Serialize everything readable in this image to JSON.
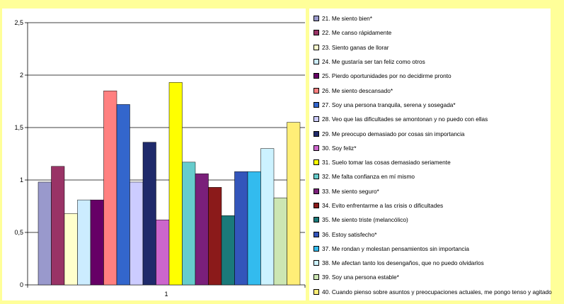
{
  "chart_data": {
    "type": "bar",
    "categories": [
      "1"
    ],
    "ylim": [
      0,
      2.5
    ],
    "yticks": [
      "0",
      "0,5",
      "1",
      "1,5",
      "2",
      "2,5"
    ],
    "grid": true,
    "legend_position": "right",
    "series": [
      {
        "name": "21. Me siento bien*",
        "value": 0.98,
        "color": "#9999cc"
      },
      {
        "name": "22. Me canso rápidamente",
        "value": 1.13,
        "color": "#993366"
      },
      {
        "name": "23. Siento ganas de llorar",
        "value": 0.68,
        "color": "#ffffcc"
      },
      {
        "name": "24. Me gustaría ser tan feliz como otros",
        "value": 0.81,
        "color": "#ccecff"
      },
      {
        "name": "25. Pierdo oportunidades por no decidirme pronto",
        "value": 0.81,
        "color": "#660066"
      },
      {
        "name": "26. Me siento descansado*",
        "value": 1.85,
        "color": "#ff8080"
      },
      {
        "name": "27. Soy una persona tranquila, serena y sosegada*",
        "value": 1.72,
        "color": "#3366cc"
      },
      {
        "name": "28. Veo que las dificultades se amontonan y no puedo con ellas",
        "value": 0.98,
        "color": "#ccccff"
      },
      {
        "name": "29. Me preocupo demasiado por cosas sin importancia",
        "value": 1.36,
        "color": "#1f2a6b"
      },
      {
        "name": "30. Soy feliz*",
        "value": 0.62,
        "color": "#cc66cc"
      },
      {
        "name": "31. Suelo tomar las cosas demasiado seriamente",
        "value": 1.93,
        "color": "#ffff00"
      },
      {
        "name": "32. Me falta confianza en mí mismo",
        "value": 1.17,
        "color": "#66cccc"
      },
      {
        "name": "33. Me siento seguro*",
        "value": 1.06,
        "color": "#7a1f7a"
      },
      {
        "name": "34.  Evito enfrentarme a las crisis o dificultades",
        "value": 0.93,
        "color": "#8b1a1a"
      },
      {
        "name": "35. Me siento triste (melancólico)",
        "value": 0.66,
        "color": "#1a7a7a"
      },
      {
        "name": "36. Estoy satisfecho*",
        "value": 1.08,
        "color": "#3355bb"
      },
      {
        "name": "37. Me rondan y molestan pensamientos sin importancia",
        "value": 1.08,
        "color": "#33bbee"
      },
      {
        "name": "38. Me afectan tanto los desengaños, que no puedo olvidarlos",
        "value": 1.3,
        "color": "#ccf2ff"
      },
      {
        "name": "39. Soy una persona estable*",
        "value": 0.83,
        "color": "#cce6b3"
      },
      {
        "name": "40. Cuando pienso sobre asuntos y preocupaciones actuales, me pongo tenso y agitado",
        "value": 1.55,
        "color": "#ffee77"
      }
    ]
  }
}
